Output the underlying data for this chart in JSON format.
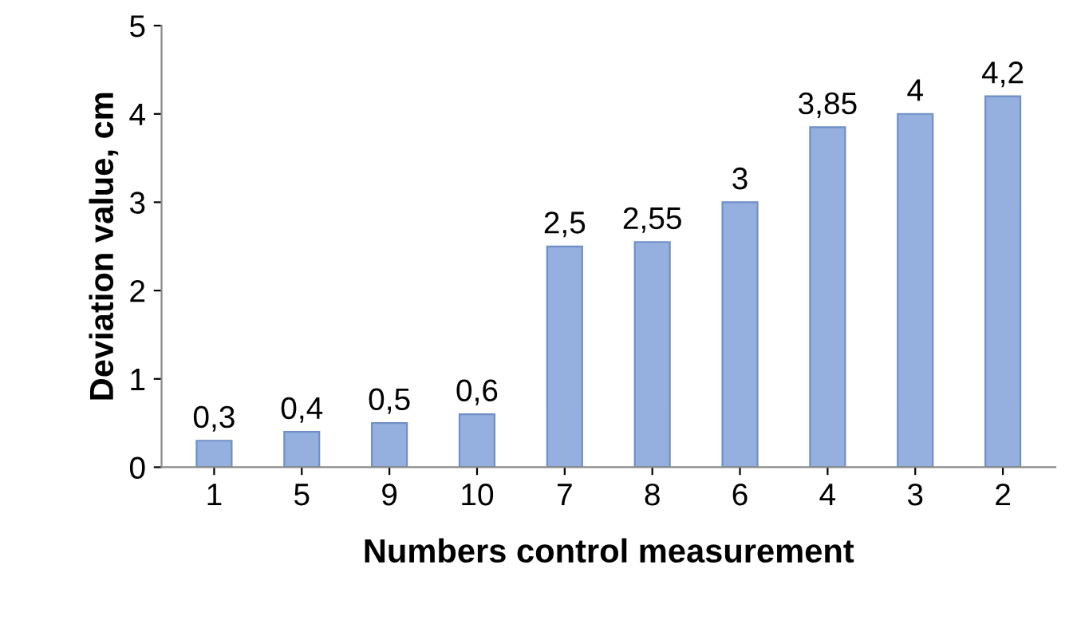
{
  "chart_data": {
    "type": "bar",
    "xlabel": "Numbers control measurement",
    "ylabel": "Deviation value, cm",
    "categories": [
      "1",
      "5",
      "9",
      "10",
      "7",
      "8",
      "6",
      "4",
      "3",
      "2"
    ],
    "values": [
      0.3,
      0.4,
      0.5,
      0.6,
      2.5,
      2.55,
      3,
      3.85,
      4,
      4.2
    ],
    "value_labels": [
      "0,3",
      "0,4",
      "0,5",
      "0,6",
      "2,5",
      "2,55",
      "3",
      "3,85",
      "4",
      "4,2"
    ],
    "color": "#95b0de",
    "ylim": [
      0,
      5
    ],
    "yticks": [
      0,
      1,
      2,
      3,
      4,
      5
    ]
  }
}
